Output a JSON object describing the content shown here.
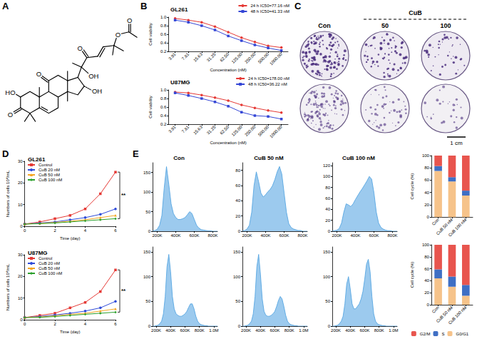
{
  "panel_labels": [
    "A",
    "B",
    "C",
    "D",
    "E"
  ],
  "structure": {
    "atom_labels": [
      "HO",
      "O",
      "O",
      "OH",
      "OH",
      "O",
      "O",
      "O"
    ]
  },
  "colony_assay": {
    "column_labels": [
      "Con",
      "50",
      "100"
    ],
    "group_label": "CuB",
    "scale_bar": "1 cm"
  },
  "chart_data": [
    {
      "type": "line",
      "title": "GL261",
      "x_label": "Concentration (nM)",
      "y_label": "Cell viability",
      "categories": [
        "3.91",
        "7.81",
        "15.63",
        "31.25",
        "62.50",
        "125.00",
        "250.00",
        "500.00",
        "1000.00"
      ],
      "ylim": [
        0.2,
        1
      ],
      "yticks": [
        0.2,
        0.4,
        0.6,
        0.8,
        {
          "value": 1,
          "label": "1.0"
        }
      ],
      "grid": false,
      "legend": "upper right",
      "series": [
        {
          "name": "24 h IC50=77.16 nM",
          "color": "#e53935",
          "marker": "circle",
          "values": [
            0.97,
            0.93,
            0.88,
            0.78,
            0.65,
            0.52,
            0.42,
            0.33,
            0.29
          ]
        },
        {
          "name": "48 h IC50=41.33 nM",
          "color": "#3547d6",
          "marker": "square",
          "values": [
            0.93,
            0.88,
            0.8,
            0.7,
            0.56,
            0.45,
            0.35,
            0.28,
            0.22
          ]
        }
      ]
    },
    {
      "type": "line",
      "title": "U87MG",
      "x_label": "Concentration (nM)",
      "y_label": "Cell viability",
      "categories": [
        "3.91",
        "7.81",
        "15.63",
        "31.25",
        "62.50",
        "125.00",
        "250.00",
        "500.00",
        "1000.00"
      ],
      "ylim": [
        0.2,
        1
      ],
      "yticks": [
        0.2,
        0.4,
        0.6,
        0.8,
        {
          "value": 1,
          "label": "1.0"
        }
      ],
      "grid": false,
      "legend": "upper right",
      "series": [
        {
          "name": "24 h IC50=178.00 nM",
          "color": "#e53935",
          "marker": "circle",
          "values": [
            0.95,
            0.93,
            0.88,
            0.82,
            0.75,
            0.65,
            0.58,
            0.52,
            0.47
          ]
        },
        {
          "name": "48 h IC50=36.22 nM",
          "color": "#3547d6",
          "marker": "square",
          "values": [
            0.93,
            0.87,
            0.8,
            0.72,
            0.62,
            0.48,
            0.4,
            0.38,
            0.32
          ]
        }
      ]
    },
    {
      "type": "line",
      "title": "GL261",
      "x_label": "Time (day)",
      "y_label": "Numbers of cells 10⁴/mL",
      "x": [
        0,
        1,
        2,
        3,
        4,
        5,
        6
      ],
      "xlim": [
        0,
        6
      ],
      "xticks": [
        0,
        2,
        4,
        6
      ],
      "ylim": [
        0,
        30
      ],
      "yticks": [
        0,
        10,
        20,
        30
      ],
      "grid": false,
      "legend": "upper left",
      "annotation": "**",
      "series": [
        {
          "name": "Control",
          "color": "#e53935",
          "marker": "square",
          "values": [
            1,
            2,
            3.5,
            5,
            8,
            15,
            25
          ]
        },
        {
          "name": "CuB 20 nM",
          "color": "#2f4bd9",
          "marker": "circle",
          "values": [
            1,
            1.5,
            2,
            3,
            4,
            5.5,
            8
          ]
        },
        {
          "name": "CuB 50 nM",
          "color": "#f5a623",
          "marker": "triangle",
          "values": [
            1,
            1.3,
            1.8,
            2.3,
            3,
            4,
            5
          ]
        },
        {
          "name": "CuB 100 nM",
          "color": "#2ca02c",
          "marker": "diamond",
          "values": [
            1,
            1.2,
            1.5,
            2,
            2.5,
            3,
            3.5
          ]
        }
      ]
    },
    {
      "type": "line",
      "title": "U87MG",
      "x_label": "Time (day)",
      "y_label": "Numbers of cells 10⁴/mL",
      "x": [
        0,
        1,
        2,
        3,
        4,
        5,
        6
      ],
      "xlim": [
        0,
        6
      ],
      "xticks": [
        0,
        2,
        4,
        6
      ],
      "ylim": [
        0,
        30
      ],
      "yticks": [
        0,
        10,
        20,
        30
      ],
      "grid": false,
      "legend": "upper left",
      "annotation": "**",
      "series": [
        {
          "name": "Control",
          "color": "#e53935",
          "marker": "square",
          "values": [
            1,
            2,
            3,
            5.5,
            8,
            13,
            23
          ]
        },
        {
          "name": "CuB 20 nM",
          "color": "#2f4bd9",
          "marker": "circle",
          "values": [
            1,
            1.5,
            2.2,
            3,
            4,
            5.5,
            8.5
          ]
        },
        {
          "name": "CuB 50 nM",
          "color": "#f5a623",
          "marker": "triangle",
          "values": [
            1,
            1.3,
            1.8,
            2.5,
            3,
            4,
            5
          ]
        },
        {
          "name": "CuB 100 nM",
          "color": "#2ca02c",
          "marker": "diamond",
          "values": [
            1,
            1.1,
            1.5,
            2,
            2.5,
            3,
            3.5
          ]
        }
      ]
    },
    {
      "type": "area",
      "title": "Con",
      "color": "#4a9fe0",
      "grid": false,
      "x": [
        150000,
        175000,
        200000,
        225000,
        250000,
        275000,
        300000,
        325000,
        350000,
        375000,
        400000,
        425000,
        450000,
        475000,
        500000,
        525000,
        550000,
        575000,
        600000,
        625000,
        650000,
        675000,
        700000,
        725000,
        750000,
        775000,
        800000,
        825000,
        850000
      ],
      "values": [
        0,
        2,
        5,
        15,
        40,
        110,
        165,
        120,
        70,
        45,
        35,
        30,
        30,
        32,
        35,
        42,
        50,
        45,
        30,
        15,
        8,
        4,
        3,
        2,
        1,
        1,
        0,
        0,
        0
      ],
      "xlim": [
        150000,
        850000
      ],
      "xticks": [
        {
          "value": 200000,
          "label": "200K"
        },
        {
          "value": 400000,
          "label": "400K"
        },
        {
          "value": 600000,
          "label": "600K"
        },
        {
          "value": 800000,
          "label": "800K"
        }
      ],
      "ylim": [
        0,
        175
      ],
      "yticks": [
        0,
        50,
        100,
        150
      ]
    },
    {
      "type": "area",
      "title": "CuB 50 nM",
      "color": "#4a9fe0",
      "grid": false,
      "x": [
        150000,
        175000,
        200000,
        225000,
        250000,
        275000,
        300000,
        325000,
        350000,
        375000,
        400000,
        425000,
        450000,
        475000,
        500000,
        525000,
        550000,
        575000,
        600000,
        625000,
        650000,
        675000,
        700000,
        725000,
        750000,
        775000,
        800000,
        825000,
        850000
      ],
      "values": [
        0,
        1,
        3,
        8,
        25,
        60,
        78,
        65,
        50,
        45,
        48,
        52,
        55,
        60,
        68,
        78,
        85,
        75,
        50,
        25,
        10,
        5,
        3,
        2,
        1,
        1,
        0,
        0,
        0
      ],
      "xlim": [
        150000,
        850000
      ],
      "xticks": [
        {
          "value": 200000,
          "label": "200K"
        },
        {
          "value": 400000,
          "label": "400K"
        },
        {
          "value": 600000,
          "label": "600K"
        },
        {
          "value": 800000,
          "label": "800K"
        }
      ],
      "ylim": [
        0,
        90
      ],
      "yticks": [
        0,
        20,
        40,
        60,
        80
      ]
    },
    {
      "type": "area",
      "title": "CuB 100 nM",
      "color": "#4a9fe0",
      "grid": false,
      "x": [
        150000,
        175000,
        200000,
        225000,
        250000,
        275000,
        300000,
        325000,
        350000,
        375000,
        400000,
        425000,
        450000,
        475000,
        500000,
        525000,
        550000,
        575000,
        600000,
        625000,
        650000,
        675000,
        700000,
        725000,
        750000,
        775000,
        800000,
        825000,
        850000
      ],
      "values": [
        0,
        1,
        2,
        5,
        15,
        35,
        50,
        48,
        45,
        50,
        58,
        65,
        72,
        78,
        85,
        92,
        100,
        95,
        70,
        35,
        15,
        7,
        4,
        2,
        1,
        1,
        0,
        0,
        0
      ],
      "xlim": [
        150000,
        850000
      ],
      "xticks": [
        {
          "value": 200000,
          "label": "200K"
        },
        {
          "value": 400000,
          "label": "400K"
        },
        {
          "value": 600000,
          "label": "600K"
        },
        {
          "value": 800000,
          "label": "800K"
        }
      ],
      "ylim": [
        0,
        125
      ],
      "yticks": [
        0,
        20,
        40,
        60,
        80,
        100,
        120
      ]
    },
    {
      "type": "area",
      "color": "#4a9fe0",
      "grid": false,
      "x": [
        150000,
        175000,
        200000,
        225000,
        250000,
        275000,
        300000,
        325000,
        350000,
        375000,
        400000,
        425000,
        450000,
        475000,
        500000,
        525000,
        550000,
        575000,
        600000,
        625000,
        650000,
        675000,
        700000,
        725000,
        750000,
        775000,
        800000,
        825000,
        850000,
        875000,
        900000,
        925000,
        950000,
        975000,
        1000000,
        1025000,
        1050000
      ],
      "values": [
        0,
        0,
        1,
        2,
        5,
        10,
        25,
        60,
        120,
        145,
        110,
        60,
        35,
        25,
        22,
        20,
        20,
        22,
        25,
        30,
        38,
        45,
        45,
        35,
        20,
        10,
        5,
        3,
        2,
        1,
        1,
        0,
        0,
        0,
        0,
        0,
        0
      ],
      "xlim": [
        150000,
        1050000
      ],
      "xticks": [
        {
          "value": 200000,
          "label": "200K"
        },
        {
          "value": 400000,
          "label": "400K"
        },
        {
          "value": 600000,
          "label": "600K"
        },
        {
          "value": 800000,
          "label": "800K"
        },
        {
          "value": 1000000,
          "label": "1.0M"
        }
      ],
      "ylim": [
        0,
        160
      ],
      "yticks": [
        0,
        50,
        100,
        150
      ]
    },
    {
      "type": "area",
      "color": "#4a9fe0",
      "grid": false,
      "x": [
        150000,
        175000,
        200000,
        225000,
        250000,
        275000,
        300000,
        325000,
        350000,
        375000,
        400000,
        425000,
        450000,
        475000,
        500000,
        525000,
        550000,
        575000,
        600000,
        625000,
        650000,
        675000,
        700000,
        725000,
        750000,
        775000,
        800000,
        825000,
        850000,
        875000,
        900000,
        925000,
        950000,
        975000,
        1000000,
        1025000,
        1050000
      ],
      "values": [
        0,
        0,
        1,
        2,
        5,
        10,
        25,
        60,
        120,
        145,
        105,
        55,
        30,
        22,
        20,
        20,
        22,
        25,
        30,
        40,
        52,
        60,
        55,
        40,
        22,
        10,
        5,
        3,
        2,
        1,
        1,
        0,
        0,
        0,
        0,
        0,
        0
      ],
      "xlim": [
        150000,
        1050000
      ],
      "xticks": [
        {
          "value": 200000,
          "label": "200K"
        },
        {
          "value": 400000,
          "label": "400K"
        },
        {
          "value": 600000,
          "label": "600K"
        },
        {
          "value": 800000,
          "label": "800K"
        },
        {
          "value": 1000000,
          "label": "1.0M"
        }
      ],
      "ylim": [
        0,
        160
      ],
      "yticks": [
        0,
        50,
        100,
        150
      ]
    },
    {
      "type": "area",
      "color": "#4a9fe0",
      "grid": false,
      "x": [
        150000,
        175000,
        200000,
        225000,
        250000,
        275000,
        300000,
        325000,
        350000,
        375000,
        400000,
        425000,
        450000,
        475000,
        500000,
        525000,
        550000,
        575000,
        600000,
        625000,
        650000,
        675000,
        700000,
        725000,
        750000,
        775000,
        800000,
        825000,
        850000,
        875000,
        900000,
        925000,
        950000,
        975000,
        1000000,
        1025000,
        1050000
      ],
      "values": [
        0,
        0,
        1,
        2,
        5,
        10,
        20,
        45,
        85,
        100,
        75,
        45,
        35,
        35,
        40,
        45,
        55,
        70,
        95,
        125,
        135,
        110,
        60,
        25,
        10,
        5,
        3,
        2,
        1,
        1,
        0,
        0,
        0,
        0,
        0,
        0,
        0
      ],
      "xlim": [
        150000,
        1050000
      ],
      "xticks": [
        {
          "value": 200000,
          "label": "200K"
        },
        {
          "value": 400000,
          "label": "400K"
        },
        {
          "value": 600000,
          "label": "600K"
        },
        {
          "value": 800000,
          "label": "800K"
        },
        {
          "value": 1000000,
          "label": "1.0M"
        }
      ],
      "ylim": [
        0,
        160
      ],
      "yticks": [
        0,
        50,
        100,
        150
      ]
    },
    {
      "type": "bar",
      "stacked": true,
      "y_label": "Cell cycle (%)",
      "grid": false,
      "categories": [
        "Con",
        "CuB 50 nM",
        "CuB 100 nM"
      ],
      "ylim": [
        0,
        100
      ],
      "yticks": [
        0,
        20,
        40,
        60,
        80,
        100
      ],
      "series": [
        {
          "name": "G0/G1",
          "color": "#f6c38a",
          "values": [
            75,
            58,
            35
          ]
        },
        {
          "name": "S",
          "color": "#3f6fc4",
          "values": [
            8,
            7,
            8
          ]
        },
        {
          "name": "G2/M",
          "color": "#e8554e",
          "values": [
            17,
            35,
            57
          ]
        }
      ]
    },
    {
      "type": "bar",
      "stacked": true,
      "y_label": "Cell cycle (%)",
      "grid": false,
      "legend": "bottom",
      "categories": [
        "Con",
        "CuB 50 nM",
        "CuB 100 nM"
      ],
      "ylim": [
        0,
        100
      ],
      "yticks": [
        0,
        20,
        40,
        60,
        80,
        100
      ],
      "series": [
        {
          "name": "G0/G1",
          "color": "#f6c38a",
          "values": [
            44,
            30,
            15
          ]
        },
        {
          "name": "S",
          "color": "#3f6fc4",
          "values": [
            15,
            17,
            18
          ]
        },
        {
          "name": "G2/M",
          "color": "#e8554e",
          "values": [
            41,
            53,
            67
          ]
        }
      ]
    }
  ]
}
